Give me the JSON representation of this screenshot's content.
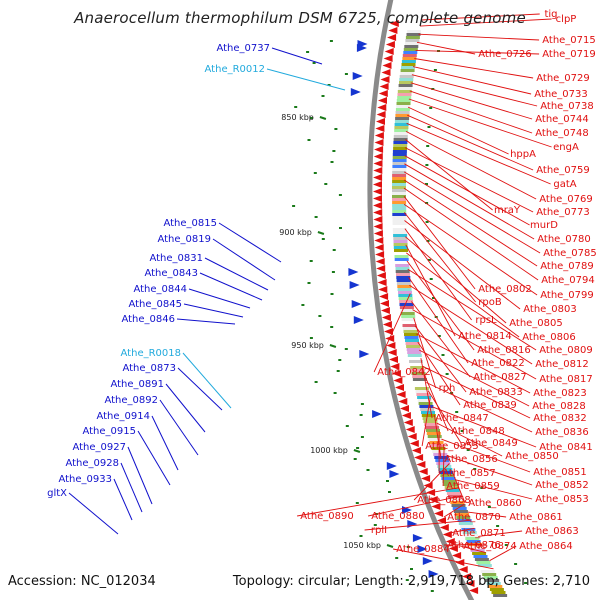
{
  "title": "Anaerocellum thermophilum DSM 6725, complete genome",
  "accession": "Accession: NC_012034",
  "summary": "Topology: circular; Length: 2,919,718 bp; Genes: 2,710",
  "colors": {
    "backbone": "#8a8a8a",
    "forward_label": "#1111cc",
    "rna_label": "#22aadd",
    "reverse_label": "#e01010",
    "reverse_arrow": "#e01010",
    "forward_arrow": "#1535d0",
    "gc_skew": "#1a7a1a"
  },
  "ticks": [
    {
      "label": "850 kbp"
    },
    {
      "label": "900 kbp"
    },
    {
      "label": "950 kbp"
    },
    {
      "label": "1000 kbp"
    },
    {
      "label": "1050 kbp"
    }
  ],
  "left_labels": [
    {
      "text": "Athe_0737",
      "type": "cds"
    },
    {
      "text": "Athe_R0012",
      "type": "rna"
    },
    {
      "text": "Athe_0815",
      "type": "cds"
    },
    {
      "text": "Athe_0819",
      "type": "cds"
    },
    {
      "text": "Athe_0831",
      "type": "cds"
    },
    {
      "text": "Athe_0843",
      "type": "cds"
    },
    {
      "text": "Athe_0844",
      "type": "cds"
    },
    {
      "text": "Athe_0845",
      "type": "cds"
    },
    {
      "text": "Athe_0846",
      "type": "cds"
    },
    {
      "text": "Athe_R0018",
      "type": "rna"
    },
    {
      "text": "Athe_0873",
      "type": "cds"
    },
    {
      "text": "Athe_0891",
      "type": "cds"
    },
    {
      "text": "Athe_0892",
      "type": "cds"
    },
    {
      "text": "Athe_0914",
      "type": "cds"
    },
    {
      "text": "Athe_0915",
      "type": "cds"
    },
    {
      "text": "Athe_0927",
      "type": "cds"
    },
    {
      "text": "Athe_0928",
      "type": "cds"
    },
    {
      "text": "Athe_0933",
      "type": "cds"
    },
    {
      "text": "gltX",
      "type": "cds"
    }
  ],
  "right_labels": [
    {
      "text": "tig"
    },
    {
      "text": "clpP"
    },
    {
      "text": "Athe_0715"
    },
    {
      "text": "Athe_0726"
    },
    {
      "text": "Athe_0719"
    },
    {
      "text": "Athe_0729"
    },
    {
      "text": "Athe_0733"
    },
    {
      "text": "Athe_0738"
    },
    {
      "text": "Athe_0744"
    },
    {
      "text": "Athe_0748"
    },
    {
      "text": "engA"
    },
    {
      "text": "hppA"
    },
    {
      "text": "Athe_0759"
    },
    {
      "text": "gatA"
    },
    {
      "text": "Athe_0769"
    },
    {
      "text": "mraY"
    },
    {
      "text": "Athe_0773"
    },
    {
      "text": "murD"
    },
    {
      "text": "Athe_0780"
    },
    {
      "text": "Athe_0785"
    },
    {
      "text": "Athe_0789"
    },
    {
      "text": "Athe_0794"
    },
    {
      "text": "Athe_0802"
    },
    {
      "text": "Athe_0799"
    },
    {
      "text": "rpoB"
    },
    {
      "text": "Athe_0803"
    },
    {
      "text": "rpsL"
    },
    {
      "text": "Athe_0805"
    },
    {
      "text": "Athe_0814"
    },
    {
      "text": "Athe_0806"
    },
    {
      "text": "Athe_0816"
    },
    {
      "text": "Athe_0809"
    },
    {
      "text": "Athe_0822"
    },
    {
      "text": "Athe_0812"
    },
    {
      "text": "Athe_0842"
    },
    {
      "text": "Athe_0827"
    },
    {
      "text": "Athe_0817"
    },
    {
      "text": "rph"
    },
    {
      "text": "Athe_0833"
    },
    {
      "text": "Athe_0823"
    },
    {
      "text": "Athe_0839"
    },
    {
      "text": "Athe_0828"
    },
    {
      "text": "Athe_0847"
    },
    {
      "text": "Athe_0832"
    },
    {
      "text": "Athe_0848"
    },
    {
      "text": "Athe_0836"
    },
    {
      "text": "Athe_0849"
    },
    {
      "text": "Athe_0855"
    },
    {
      "text": "Athe_0841"
    },
    {
      "text": "Athe_0856"
    },
    {
      "text": "Athe_0850"
    },
    {
      "text": "Athe_0857"
    },
    {
      "text": "Athe_0851"
    },
    {
      "text": "Athe_0859"
    },
    {
      "text": "Athe_0852"
    },
    {
      "text": "Athe_0868"
    },
    {
      "text": "Athe_0860"
    },
    {
      "text": "Athe_0853"
    },
    {
      "text": "Athe_0890"
    },
    {
      "text": "Athe_0880"
    },
    {
      "text": "Athe_0870"
    },
    {
      "text": "Athe_0861"
    },
    {
      "text": "rplI"
    },
    {
      "text": "Athe_0871"
    },
    {
      "text": "Athe_0863"
    },
    {
      "text": "Athe_0876"
    },
    {
      "text": "Athe_0874"
    },
    {
      "text": "Athe_0864"
    },
    {
      "text": "Athe_0884"
    }
  ]
}
